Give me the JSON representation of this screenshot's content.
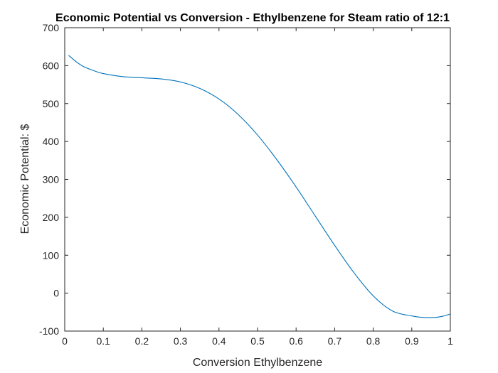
{
  "chart_data": {
    "type": "line",
    "title": "Economic Potential vs Conversion - Ethylbenzene for Steam ratio of 12:1",
    "xlabel": "Conversion Ethylbenzene",
    "ylabel": "Economic Potential: $",
    "xlim": [
      0,
      1
    ],
    "ylim": [
      -100,
      700
    ],
    "xticks": [
      0,
      0.1,
      0.2,
      0.3,
      0.4,
      0.5,
      0.6,
      0.7,
      0.8,
      0.9,
      1
    ],
    "xtick_labels": [
      "0",
      "0.1",
      "0.2",
      "0.3",
      "0.4",
      "0.5",
      "0.6",
      "0.7",
      "0.8",
      "0.9",
      "1"
    ],
    "yticks": [
      -100,
      0,
      100,
      200,
      300,
      400,
      500,
      600,
      700
    ],
    "ytick_labels": [
      "-100",
      "0",
      "100",
      "200",
      "300",
      "400",
      "500",
      "600",
      "700"
    ],
    "grid": false,
    "series": [
      {
        "color": "#0072BD",
        "x": [
          0.01,
          0.03,
          0.05,
          0.08,
          0.1,
          0.15,
          0.2,
          0.25,
          0.3,
          0.35,
          0.4,
          0.45,
          0.5,
          0.55,
          0.6,
          0.65,
          0.7,
          0.75,
          0.8,
          0.85,
          0.9,
          0.93,
          0.96,
          0.98,
          1.0
        ],
        "values": [
          627,
          610,
          597,
          585,
          579,
          571,
          568,
          565,
          557,
          540,
          512,
          471,
          417,
          352,
          280,
          203,
          126,
          54,
          -7,
          -47,
          -60,
          -64,
          -64,
          -61,
          -55
        ]
      }
    ]
  }
}
